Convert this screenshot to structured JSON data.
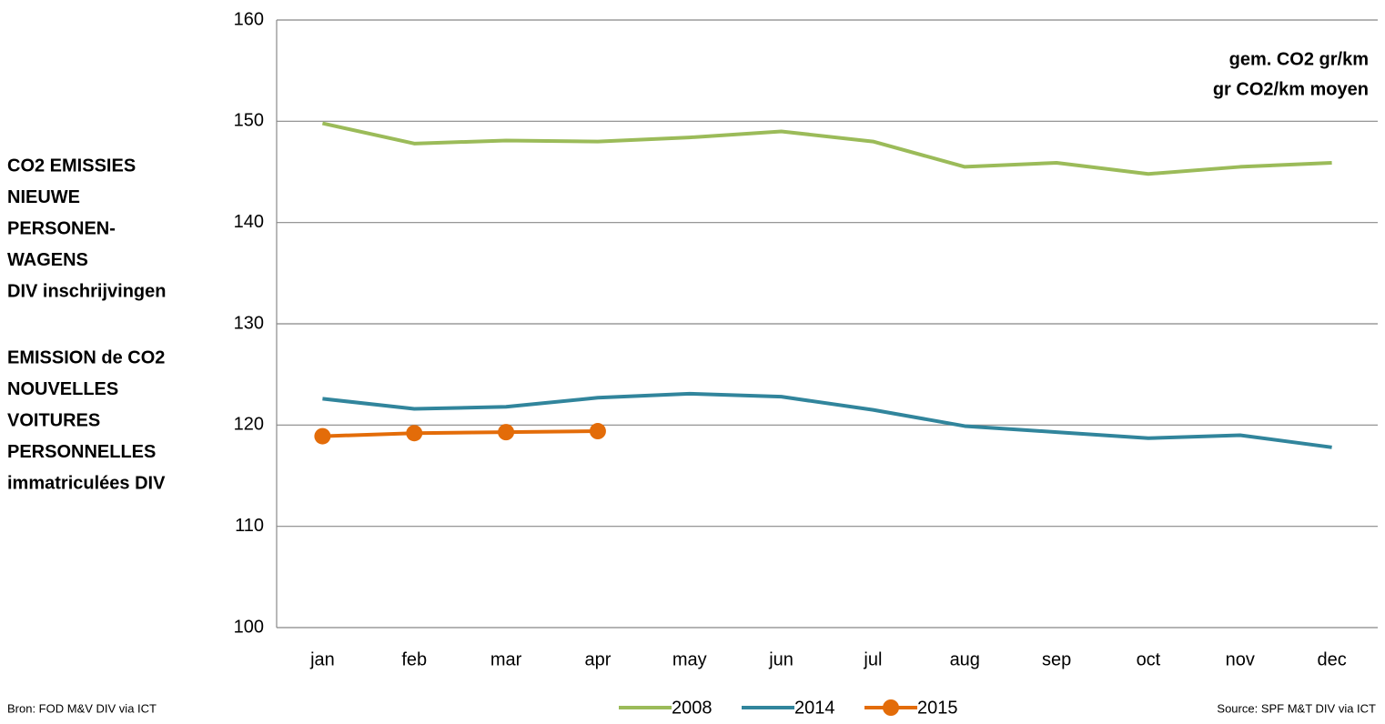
{
  "chart_data": {
    "type": "line",
    "title_nl": [
      "CO2 EMISSIES",
      "NIEUWE",
      "PERSONEN-",
      "WAGENS",
      "DIV inschrijvingen"
    ],
    "title_fr": [
      "EMISSION de CO2",
      "NOUVELLES",
      "VOITURES",
      "PERSONNELLES",
      "immatriculées DIV"
    ],
    "annotation": [
      "gem. CO2 gr/km",
      "gr CO2/km moyen"
    ],
    "source_left": "Bron: FOD M&V DIV via ICT",
    "source_right": "Source: SPF M&T DIV via ICT",
    "categories": [
      "jan",
      "feb",
      "mar",
      "apr",
      "may",
      "jun",
      "jul",
      "aug",
      "sep",
      "oct",
      "nov",
      "dec"
    ],
    "series": [
      {
        "name": "2008",
        "color": "#9bbb59",
        "markers": false,
        "values": [
          149.8,
          147.8,
          148.1,
          148.0,
          148.4,
          149.0,
          148.0,
          145.5,
          145.9,
          144.8,
          145.5,
          145.9
        ]
      },
      {
        "name": "2014",
        "color": "#31859c",
        "markers": false,
        "values": [
          122.6,
          121.6,
          121.8,
          122.7,
          123.1,
          122.8,
          121.5,
          119.9,
          119.3,
          118.7,
          119.0,
          117.8
        ]
      },
      {
        "name": "2015",
        "color": "#e36c09",
        "markers": true,
        "values": [
          118.9,
          119.2,
          119.3,
          119.4,
          null,
          null,
          null,
          null,
          null,
          null,
          null,
          null
        ]
      }
    ],
    "ylim": [
      100,
      160
    ],
    "yticks": [
      100,
      110,
      120,
      130,
      140,
      150,
      160
    ],
    "grid": true,
    "legend": "bottom"
  }
}
